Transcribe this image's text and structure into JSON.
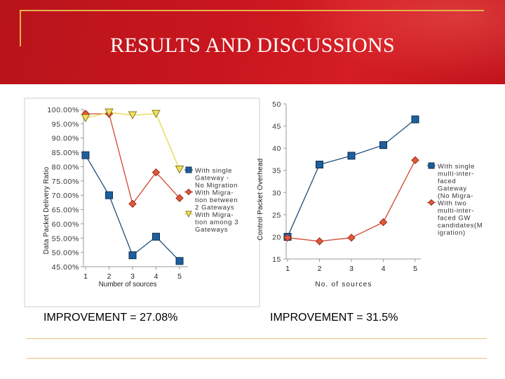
{
  "slide": {
    "title": "RESULTS AND DISCUSSIONS",
    "left_improvement": "IMPROVEMENT = 27.08%",
    "right_improvement": "IMPROVEMENT = 31.5%"
  },
  "colors": {
    "banner": "#c9161e",
    "accent_gold": "#e8b04a",
    "series_blue": "#1f4e79",
    "series_blue_marker": "#1d5f9e",
    "series_orange": "#d2452d",
    "series_orange_marker": "#e05a3a",
    "series_yellow": "#e6d84a",
    "series_yellow_marker": "#f0e060"
  },
  "chart_data": [
    {
      "type": "line",
      "xlabel": "Number of sources",
      "ylabel": "Data Packet Delivery Ratio",
      "x": [
        1,
        2,
        3,
        4,
        5
      ],
      "x_ticks": [
        "1",
        "2",
        "3",
        "4",
        "5"
      ],
      "ylim": [
        45,
        100
      ],
      "y_ticks": [
        "100.00%",
        "95.00%",
        "90.00%",
        "85.00%",
        "80.00%",
        "75.00%",
        "70.00%",
        "65.00%",
        "60.00%",
        "55.00%",
        "50.00%",
        "45.00%"
      ],
      "legend_placement": "right",
      "series": [
        {
          "name": "With single Gateway - No Migration",
          "legend_lines": [
            "With single",
            "Gateway -",
            "No Migration"
          ],
          "marker": "square",
          "color": "#1f4e79",
          "values": [
            84,
            70,
            49,
            55.5,
            47
          ]
        },
        {
          "name": "With Migration between 2 Gateways",
          "legend_lines": [
            "With Migra-",
            "tion between",
            "2 Gateways"
          ],
          "marker": "diamond",
          "color": "#d2452d",
          "values": [
            98.5,
            98.5,
            67,
            78,
            69
          ]
        },
        {
          "name": "With Migration among 3 Gateways",
          "legend_lines": [
            "With Migra-",
            "tion among 3",
            "Gateways"
          ],
          "marker": "triangle-down",
          "color": "#e6d84a",
          "values": [
            97,
            99,
            98,
            98.5,
            79
          ]
        }
      ]
    },
    {
      "type": "line",
      "xlabel": "No. of sources",
      "ylabel": "Control Packet Overhead",
      "x": [
        1,
        2,
        3,
        4,
        5
      ],
      "x_ticks": [
        "1",
        "2",
        "3",
        "4",
        "5"
      ],
      "ylim": [
        15,
        50
      ],
      "y_ticks": [
        "50",
        "45",
        "40",
        "35",
        "30",
        "25",
        "20",
        "15"
      ],
      "legend_placement": "right",
      "series": [
        {
          "name": "With single multi-interfaced Gateway (No Migration)",
          "legend_lines": [
            "With single",
            "multi-inter-",
            "faced",
            "Gateway",
            "(No Migra-"
          ],
          "marker": "square",
          "color": "#1f4e79",
          "values": [
            20,
            36.3,
            38.3,
            40.7,
            46.5
          ]
        },
        {
          "name": "With two multi-interfaced GW candidates (Migration)",
          "legend_lines": [
            "With two",
            "multi-inter-",
            "faced GW",
            "candidates(M",
            "igration)"
          ],
          "marker": "diamond",
          "color": "#d2452d",
          "values": [
            19.8,
            19,
            19.8,
            23.3,
            37.3
          ]
        }
      ]
    }
  ]
}
